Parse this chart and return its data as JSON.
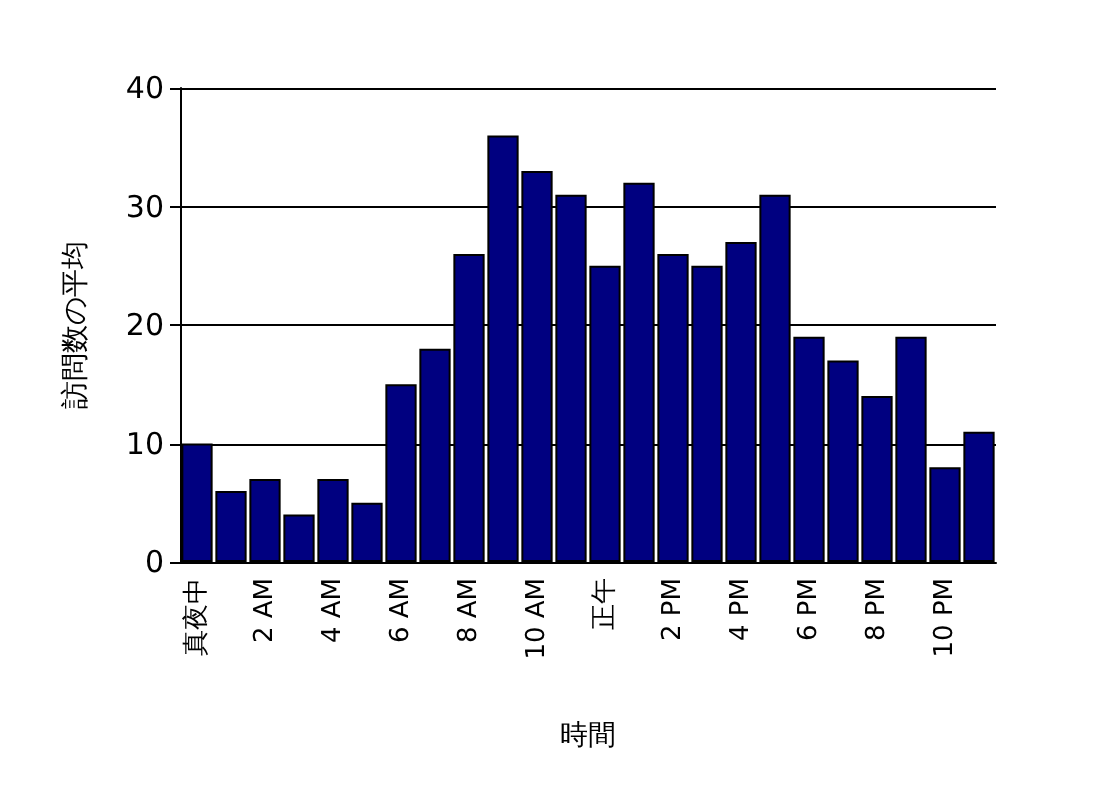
{
  "chart_data": {
    "type": "bar",
    "xlabel": "時間",
    "ylabel": "訪問数の平均",
    "categories": [
      "真夜中",
      null,
      "2 AM",
      null,
      "4 AM",
      null,
      "6 AM",
      null,
      "8 AM",
      null,
      "10 AM",
      null,
      "正午",
      null,
      "2 PM",
      null,
      "4 PM",
      null,
      "6 PM",
      null,
      "8 PM",
      null,
      "10 PM",
      null
    ],
    "values": [
      10,
      6,
      7,
      4,
      7,
      5,
      15,
      18,
      26,
      36,
      33,
      31,
      25,
      32,
      26,
      25,
      27,
      31,
      19,
      17,
      14,
      19,
      8,
      11
    ],
    "color": "#000080",
    "ylim": [
      0,
      40
    ],
    "yticks": [
      0,
      10,
      20,
      30,
      40
    ],
    "grid": "y"
  }
}
